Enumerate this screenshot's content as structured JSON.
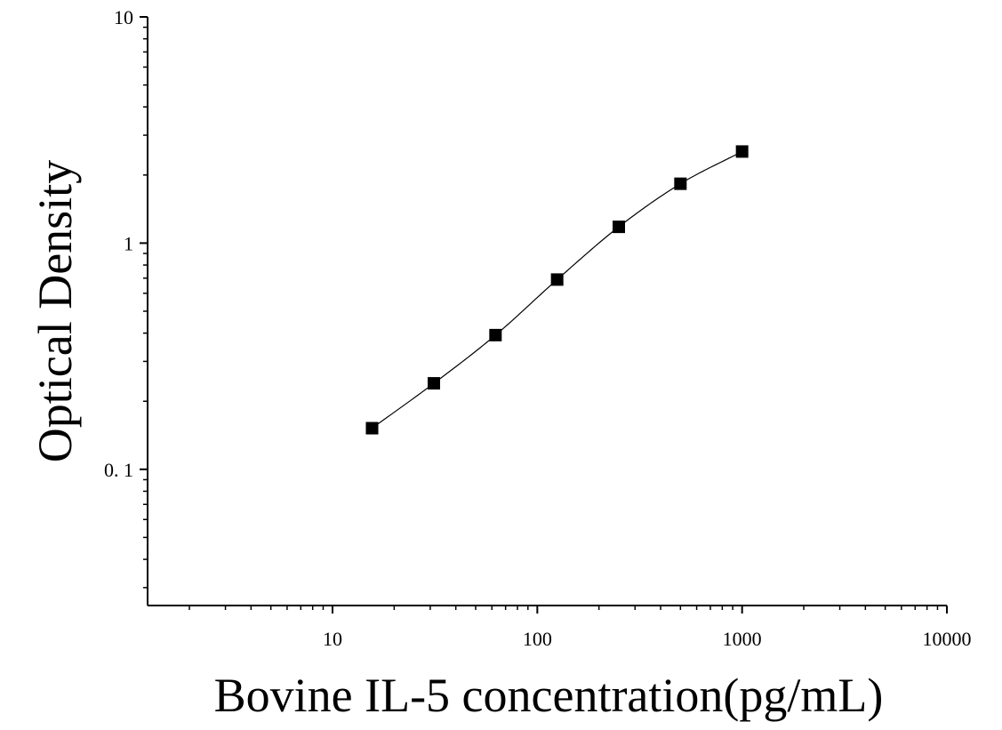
{
  "chart_data": {
    "type": "scatter",
    "xlabel": "Bovine IL-5 concentration(pg/mL)",
    "ylabel": "Optical Density",
    "x_scale": "log",
    "y_scale": "log",
    "xlim": [
      1.25,
      10000
    ],
    "ylim": [
      0.025,
      10
    ],
    "x_ticks": [
      {
        "value": 10,
        "label": "10"
      },
      {
        "value": 100,
        "label": "100"
      },
      {
        "value": 1000,
        "label": "1000"
      },
      {
        "value": 10000,
        "label": "10000"
      }
    ],
    "y_ticks": [
      {
        "value": 10,
        "label": "10"
      },
      {
        "value": 1,
        "label": "1"
      },
      {
        "value": 0.1,
        "label": "0. 1"
      }
    ],
    "grid": false,
    "legend": "none",
    "series": [
      {
        "marker": "square",
        "color": "#000000",
        "fit_curve": true,
        "x": [
          15.6,
          31.25,
          62.5,
          125,
          250,
          500,
          1000
        ],
        "y": [
          0.152,
          0.24,
          0.392,
          0.69,
          1.18,
          1.83,
          2.54
        ]
      }
    ]
  }
}
